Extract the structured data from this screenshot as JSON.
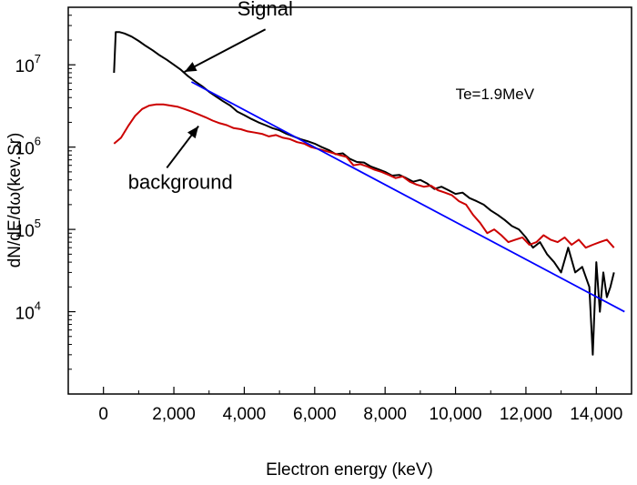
{
  "chart_data": {
    "type": "line",
    "xlabel": "Electron energy (keV)",
    "ylabel": "dN/dE/dω(kev.Sr)",
    "xlim": [
      -1000,
      15000
    ],
    "ylim": [
      1000,
      50000000
    ],
    "yscale": "log",
    "x_ticks": [
      0,
      2000,
      4000,
      6000,
      8000,
      10000,
      12000,
      14000
    ],
    "x_tick_labels": [
      "0",
      "2,000",
      "4,000",
      "6,000",
      "8,000",
      "10,000",
      "12,000",
      "14,000"
    ],
    "y_ticks": [
      10000,
      100000,
      1000000,
      10000000
    ],
    "y_tick_labels": [
      {
        "base": "10",
        "exp": "4"
      },
      {
        "base": "10",
        "exp": "5"
      },
      {
        "base": "10",
        "exp": "6"
      },
      {
        "base": "10",
        "exp": "7"
      }
    ],
    "grid": false,
    "series": [
      {
        "color": "#000000",
        "x": [
          300,
          350,
          450,
          600,
          800,
          1000,
          1200,
          1400,
          1600,
          1800,
          2000,
          2200,
          2400,
          2600,
          2800,
          3000,
          3200,
          3400,
          3600,
          3800,
          4000,
          4200,
          4400,
          4600,
          4800,
          5000,
          5200,
          5400,
          5600,
          5800,
          6000,
          6200,
          6400,
          6600,
          6800,
          7000,
          7200,
          7400,
          7600,
          7800,
          8000,
          8200,
          8400,
          8600,
          8800,
          9000,
          9200,
          9400,
          9600,
          9800,
          10000,
          10200,
          10400,
          10600,
          10800,
          11000,
          11200,
          11400,
          11600,
          11800,
          12000,
          12200,
          12400,
          12600,
          12800,
          13000,
          13200,
          13400,
          13600,
          13800,
          13900,
          14000,
          14100,
          14200,
          14300,
          14400,
          14500
        ],
        "y": [
          8000000,
          25000000,
          25000000,
          24000000,
          22000000,
          19500000,
          17000000,
          15000000,
          13000000,
          11500000,
          10000000,
          8700000,
          7300000,
          6300000,
          5500000,
          4700000,
          4100000,
          3600000,
          3200000,
          2700000,
          2450000,
          2200000,
          2000000,
          1850000,
          1700000,
          1600000,
          1450000,
          1350000,
          1250000,
          1180000,
          1100000,
          1000000,
          920000,
          820000,
          840000,
          720000,
          660000,
          650000,
          580000,
          540000,
          500000,
          450000,
          460000,
          420000,
          380000,
          400000,
          360000,
          310000,
          330000,
          300000,
          270000,
          280000,
          240000,
          220000,
          200000,
          170000,
          150000,
          130000,
          110000,
          100000,
          80000,
          60000,
          70000,
          50000,
          40000,
          30000,
          60000,
          30000,
          35000,
          20000,
          3000,
          40000,
          10000,
          30000,
          15000,
          20000,
          30000
        ]
      },
      {
        "color": "#cc0000",
        "x": [
          300,
          500,
          700,
          900,
          1100,
          1300,
          1500,
          1700,
          1900,
          2100,
          2300,
          2500,
          2700,
          2900,
          3100,
          3300,
          3500,
          3700,
          3900,
          4100,
          4300,
          4500,
          4700,
          4900,
          5100,
          5300,
          5500,
          5700,
          5900,
          6100,
          6300,
          6500,
          6700,
          6900,
          7100,
          7300,
          7500,
          7700,
          7900,
          8100,
          8300,
          8500,
          8700,
          8900,
          9100,
          9300,
          9500,
          9700,
          9900,
          10100,
          10300,
          10500,
          10700,
          10900,
          11100,
          11300,
          11500,
          11700,
          11900,
          12100,
          12300,
          12500,
          12700,
          12900,
          13100,
          13300,
          13500,
          13700,
          13900,
          14100,
          14300,
          14500
        ],
        "y": [
          1100000,
          1300000,
          1800000,
          2400000,
          2900000,
          3200000,
          3300000,
          3300000,
          3200000,
          3100000,
          2900000,
          2700000,
          2500000,
          2300000,
          2100000,
          1950000,
          1850000,
          1700000,
          1650000,
          1550000,
          1500000,
          1450000,
          1350000,
          1400000,
          1300000,
          1250000,
          1150000,
          1100000,
          1000000,
          950000,
          900000,
          850000,
          800000,
          760000,
          600000,
          620000,
          580000,
          530000,
          500000,
          460000,
          420000,
          440000,
          380000,
          350000,
          330000,
          340000,
          300000,
          280000,
          260000,
          220000,
          200000,
          150000,
          120000,
          90000,
          100000,
          85000,
          70000,
          75000,
          80000,
          65000,
          70000,
          85000,
          75000,
          70000,
          80000,
          65000,
          75000,
          60000,
          65000,
          70000,
          75000,
          60000
        ]
      },
      {
        "color": "#0000ff",
        "x": [
          2500,
          14800
        ],
        "y": [
          6200000,
          10000
        ]
      }
    ],
    "annotations": [
      {
        "text": "Signal",
        "x": 3800,
        "y": 40000000
      },
      {
        "text": "background",
        "x": 700,
        "y": 310000
      },
      {
        "text": "Te=1.9MeV",
        "x": 10000,
        "y": 3800000
      }
    ]
  }
}
